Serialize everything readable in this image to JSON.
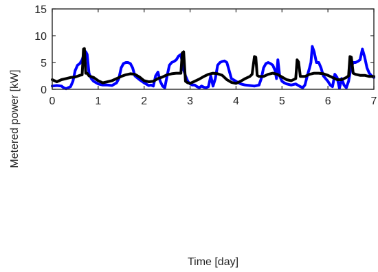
{
  "chart_data": [
    {
      "type": "line",
      "xlim": [
        0,
        7
      ],
      "ylim": [
        0,
        15
      ],
      "xticks": [
        "0",
        "1",
        "2",
        "3",
        "4",
        "5",
        "6",
        "7"
      ],
      "yticks": [
        "0",
        "5",
        "10",
        "15"
      ],
      "xlabel": "",
      "grid": false,
      "legend": "none",
      "series": [
        {
          "color": "#0000ff",
          "x": [
            0.0,
            0.1,
            0.2,
            0.25,
            0.3,
            0.4,
            0.45,
            0.5,
            0.55,
            0.6,
            0.65,
            0.7,
            0.73,
            0.76,
            0.8,
            0.85,
            0.9,
            1.0,
            1.1,
            1.2,
            1.3,
            1.4,
            1.45,
            1.5,
            1.55,
            1.6,
            1.65,
            1.7,
            1.75,
            1.8,
            1.9,
            2.0,
            2.1,
            2.15,
            2.2,
            2.25,
            2.3,
            2.35,
            2.4,
            2.45,
            2.5,
            2.55,
            2.6,
            2.65,
            2.7,
            2.75,
            2.8,
            2.85,
            2.9,
            2.95,
            3.0,
            3.05,
            3.1,
            3.15,
            3.2,
            3.25,
            3.3,
            3.35,
            3.4,
            3.45,
            3.5,
            3.55,
            3.6,
            3.65,
            3.7,
            3.75,
            3.8,
            3.85,
            3.9,
            4.0,
            4.1,
            4.2,
            4.3,
            4.4,
            4.5,
            4.55,
            4.6,
            4.65,
            4.7,
            4.75,
            4.8,
            4.85,
            4.88,
            4.91,
            4.95,
            5.0,
            5.05,
            5.1,
            5.2,
            5.3,
            5.4,
            5.45,
            5.5,
            5.55,
            5.6,
            5.63,
            5.66,
            5.7,
            5.75,
            5.8,
            5.85,
            5.9,
            6.0,
            6.05,
            6.1,
            6.15,
            6.2,
            6.25,
            6.3,
            6.35,
            6.4,
            6.45,
            6.5,
            6.55,
            6.6,
            6.65,
            6.7,
            6.75,
            6.8,
            6.85,
            6.9,
            6.95,
            7.0
          ],
          "y": [
            0.6,
            0.7,
            0.6,
            0.3,
            0.1,
            0.5,
            1.5,
            3.5,
            4.5,
            4.8,
            5.5,
            6.8,
            7.0,
            6.5,
            3.0,
            2.0,
            1.5,
            1.0,
            0.8,
            0.8,
            0.7,
            1.2,
            2.0,
            4.0,
            4.8,
            5.0,
            5.0,
            4.8,
            4.0,
            2.5,
            1.8,
            1.2,
            0.7,
            0.8,
            0.6,
            2.5,
            3.2,
            1.5,
            0.6,
            0.3,
            2.5,
            4.5,
            5.0,
            5.2,
            5.5,
            6.2,
            6.5,
            4.0,
            2.5,
            1.5,
            1.0,
            0.8,
            0.8,
            0.5,
            0.3,
            0.6,
            0.4,
            0.3,
            0.5,
            2.5,
            0.6,
            2.0,
            4.5,
            5.0,
            5.2,
            5.3,
            5.0,
            3.5,
            2.0,
            1.5,
            1.0,
            0.8,
            0.7,
            0.6,
            0.8,
            2.0,
            4.0,
            4.8,
            5.0,
            4.8,
            4.5,
            3.5,
            2.0,
            5.5,
            2.5,
            1.5,
            1.2,
            1.0,
            0.8,
            1.0,
            0.5,
            0.3,
            0.8,
            2.5,
            4.0,
            5.0,
            8.0,
            7.0,
            5.0,
            5.0,
            4.0,
            2.5,
            1.5,
            0.8,
            0.5,
            2.8,
            2.2,
            0.2,
            2.0,
            0.8,
            0.3,
            1.5,
            4.0,
            5.0,
            5.0,
            5.2,
            5.5,
            7.5,
            6.0,
            4.0,
            3.0,
            2.5,
            2.2
          ]
        },
        {
          "color": "#000000",
          "x": [
            0.0,
            0.1,
            0.2,
            0.3,
            0.4,
            0.5,
            0.6,
            0.65,
            0.68,
            0.7,
            0.73,
            0.76,
            0.8,
            0.9,
            1.0,
            1.1,
            1.2,
            1.3,
            1.4,
            1.5,
            1.6,
            1.7,
            1.8,
            1.9,
            2.0,
            2.1,
            2.2,
            2.3,
            2.4,
            2.5,
            2.6,
            2.7,
            2.8,
            2.83,
            2.86,
            2.9,
            2.95,
            3.0,
            3.1,
            3.2,
            3.3,
            3.4,
            3.5,
            3.6,
            3.7,
            3.8,
            3.9,
            4.0,
            4.1,
            4.2,
            4.3,
            4.35,
            4.4,
            4.43,
            4.46,
            4.5,
            4.6,
            4.7,
            4.8,
            4.9,
            5.0,
            5.1,
            5.2,
            5.3,
            5.33,
            5.36,
            5.4,
            5.5,
            5.6,
            5.7,
            5.8,
            5.9,
            6.0,
            6.1,
            6.2,
            6.3,
            6.4,
            6.45,
            6.48,
            6.51,
            6.55,
            6.6,
            6.7,
            6.8,
            6.9,
            7.0
          ],
          "y": [
            1.8,
            1.4,
            1.8,
            2.0,
            2.2,
            2.3,
            2.6,
            2.7,
            7.5,
            7.6,
            3.0,
            3.0,
            2.5,
            2.2,
            1.6,
            1.2,
            1.4,
            1.6,
            2.0,
            2.4,
            2.7,
            2.9,
            2.8,
            2.3,
            1.6,
            1.4,
            1.5,
            2.0,
            2.3,
            2.7,
            2.9,
            3.0,
            3.0,
            6.8,
            7.0,
            1.5,
            1.2,
            1.1,
            1.5,
            1.9,
            2.4,
            2.8,
            3.0,
            2.9,
            2.6,
            1.8,
            1.3,
            1.1,
            1.5,
            2.0,
            2.4,
            2.8,
            6.1,
            6.0,
            2.6,
            2.4,
            2.4,
            2.8,
            3.0,
            2.8,
            2.3,
            1.8,
            1.6,
            2.0,
            5.5,
            5.1,
            2.4,
            2.4,
            2.8,
            3.0,
            3.0,
            2.9,
            2.6,
            2.2,
            1.8,
            1.8,
            2.2,
            2.5,
            6.1,
            6.0,
            3.0,
            2.8,
            2.6,
            2.6,
            2.4,
            2.4
          ]
        }
      ]
    }
  ],
  "figure": {
    "ylabel": "Metered power [kW]",
    "xlabel": "Time [day]"
  }
}
